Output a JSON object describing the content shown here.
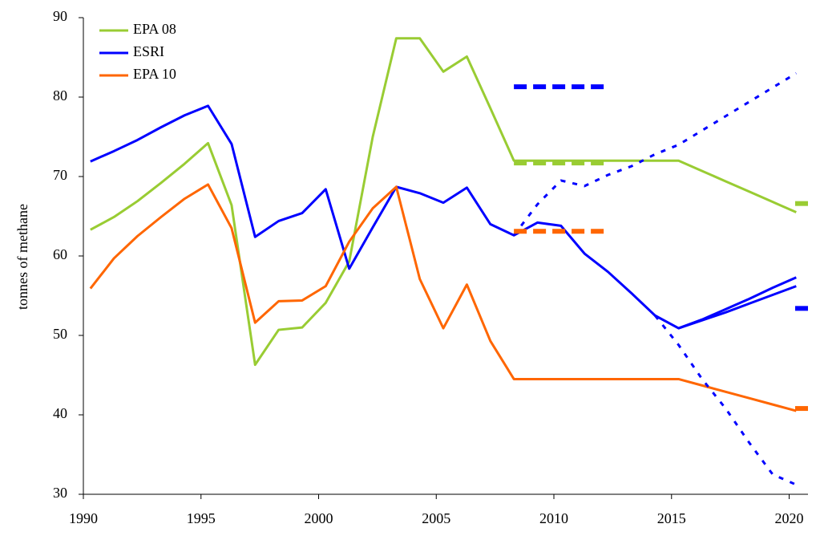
{
  "chart_data": {
    "type": "line",
    "y_label": "tonnes of methane",
    "x": [
      1990.3,
      1991.3,
      1992.3,
      1993.3,
      1994.3,
      1995.3,
      1996.3,
      1997.3,
      1998.3,
      1999.3,
      2000.3,
      2001.3,
      2002.3,
      2003.3,
      2004.3,
      2005.3,
      2006.3,
      2007.3,
      2008.3,
      2009.3,
      2010.3,
      2011.3,
      2012.3,
      2013.3,
      2014.3,
      2015.3,
      2016.3,
      2017.3,
      2018.3,
      2019.3,
      2020.3
    ],
    "series": [
      {
        "name": "EPA 08",
        "color": "#99cc33",
        "style": "solid",
        "values": [
          63.3,
          64.9,
          66.9,
          69.2,
          71.6,
          74.2,
          66.4,
          46.3,
          50.7,
          51.0,
          54.1,
          59.3,
          75.0,
          87.4,
          87.4,
          83.2,
          85.1,
          78.6,
          72.0,
          72.0,
          72.0,
          72.0,
          72.0,
          72.0,
          72.0,
          72.0,
          70.7,
          69.4,
          68.1,
          66.8,
          65.5
        ]
      },
      {
        "name": "ESRI",
        "color": "#0000ff",
        "style": "solid",
        "values": [
          71.9,
          73.2,
          74.6,
          76.2,
          77.7,
          78.9,
          74.1,
          62.4,
          64.4,
          65.4,
          68.4,
          58.4,
          63.6,
          68.7,
          67.9,
          66.7,
          68.6,
          64.0,
          62.6,
          64.2,
          63.8,
          60.3,
          58.0,
          55.3,
          52.5,
          50.9,
          51.9,
          52.9,
          54.0,
          55.1,
          56.2
        ]
      },
      {
        "name": "EPA 10",
        "color": "#ff6600",
        "style": "solid",
        "values": [
          55.9,
          59.7,
          62.5,
          64.9,
          67.2,
          69.0,
          63.5,
          51.6,
          54.3,
          54.4,
          56.2,
          61.8,
          66.0,
          68.7,
          57.1,
          50.9,
          56.4,
          49.3,
          44.5,
          44.5,
          44.5,
          44.5,
          44.5,
          44.5,
          44.5,
          44.5,
          43.7,
          42.9,
          42.1,
          41.3,
          40.5
        ]
      },
      {
        "color": "#0000ff",
        "style": "solid",
        "values": [
          null,
          null,
          null,
          null,
          null,
          null,
          null,
          null,
          null,
          null,
          null,
          null,
          null,
          null,
          null,
          null,
          null,
          null,
          null,
          null,
          null,
          null,
          null,
          null,
          null,
          50.9,
          52.0,
          53.3,
          54.6,
          56.0,
          57.3
        ]
      },
      {
        "color": "#0000ff",
        "style": "dotted",
        "values": [
          null,
          null,
          null,
          null,
          null,
          null,
          null,
          null,
          null,
          null,
          null,
          null,
          null,
          null,
          null,
          null,
          null,
          null,
          62.6,
          66.5,
          69.5,
          68.8,
          70.2,
          71.3,
          72.8,
          74.0,
          75.8,
          77.6,
          79.4,
          81.2,
          83.0
        ]
      },
      {
        "color": "#0000ff",
        "style": "dotted",
        "values": [
          null,
          null,
          null,
          null,
          null,
          null,
          null,
          null,
          null,
          null,
          null,
          null,
          null,
          null,
          null,
          null,
          null,
          null,
          null,
          null,
          null,
          null,
          null,
          null,
          52.5,
          48.8,
          44.5,
          40.8,
          36.5,
          32.5,
          31.2
        ]
      },
      {
        "color": "#0000ff",
        "style": "dashed",
        "values": [
          null,
          null,
          null,
          null,
          null,
          null,
          null,
          null,
          null,
          null,
          null,
          null,
          null,
          null,
          null,
          null,
          null,
          null,
          81.3,
          81.3,
          81.3,
          81.3,
          81.3,
          null,
          null,
          null,
          null,
          null,
          null,
          null,
          null
        ]
      },
      {
        "color": "#99cc33",
        "style": "dashed",
        "values": [
          null,
          null,
          null,
          null,
          null,
          null,
          null,
          null,
          null,
          null,
          null,
          null,
          null,
          null,
          null,
          null,
          null,
          null,
          71.7,
          71.7,
          71.7,
          71.7,
          71.7,
          null,
          null,
          null,
          null,
          null,
          null,
          null,
          null
        ]
      },
      {
        "color": "#ff6600",
        "style": "dashed",
        "values": [
          null,
          null,
          null,
          null,
          null,
          null,
          null,
          null,
          null,
          null,
          null,
          null,
          null,
          null,
          null,
          null,
          null,
          null,
          63.1,
          63.1,
          63.1,
          63.1,
          63.1,
          null,
          null,
          null,
          null,
          null,
          null,
          null,
          null
        ]
      }
    ],
    "end_marks": [
      {
        "color": "#99cc33",
        "value": 66.6
      },
      {
        "color": "#0000ff",
        "value": 53.4
      },
      {
        "color": "#ff6600",
        "value": 40.8
      }
    ],
    "xlim": [
      1990,
      2020.8
    ],
    "xticks": [
      1990,
      1995,
      2000,
      2005,
      2010,
      2015,
      2020
    ],
    "ylim": [
      30,
      90
    ],
    "yticks": [
      30,
      40,
      50,
      60,
      70,
      80,
      90
    ],
    "legend": "top-left"
  }
}
